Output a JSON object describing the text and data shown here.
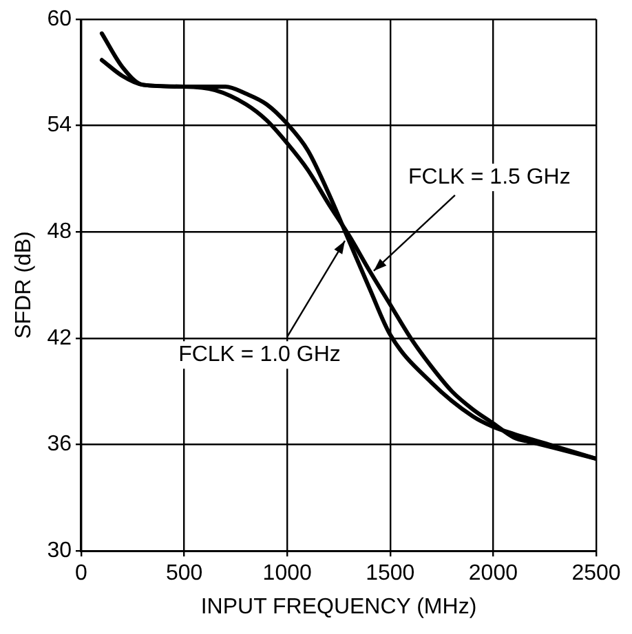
{
  "chart_data": {
    "type": "line",
    "xlabel": "INPUT FREQUENCY (MHz)",
    "ylabel": "SFDR (dB)",
    "xlim": [
      0,
      2500
    ],
    "xticks": [
      0,
      500,
      1000,
      1500,
      2000,
      2500
    ],
    "ylim": [
      30,
      60
    ],
    "yticks": [
      30,
      36,
      42,
      48,
      54,
      60
    ],
    "grid": true,
    "legend": false,
    "marker": "none",
    "line_style": "solid",
    "series": [
      {
        "color": "#000000",
        "x": [
          100,
          200,
          300,
          500,
          700,
          800,
          900,
          1000,
          1100,
          1200,
          1300,
          1400,
          1500,
          1700,
          1900,
          2000,
          2100,
          2300,
          2500
        ],
        "values": [
          57.7,
          56.8,
          56.3,
          56.2,
          56.2,
          55.8,
          55.2,
          54.1,
          52.6,
          50.2,
          47.5,
          44.8,
          42.2,
          39.5,
          37.6,
          37.0,
          36.6,
          35.9,
          35.2
        ]
      },
      {
        "color": "#000000",
        "x": [
          100,
          200,
          300,
          500,
          650,
          800,
          900,
          1000,
          1100,
          1200,
          1300,
          1400,
          1500,
          1600,
          1700,
          1800,
          1900,
          2000,
          2100,
          2200,
          2300,
          2500
        ],
        "values": [
          59.2,
          57.3,
          56.3,
          56.2,
          56.0,
          55.2,
          54.3,
          53.0,
          51.5,
          49.6,
          47.8,
          45.8,
          43.9,
          42.0,
          40.4,
          39.0,
          38.0,
          37.2,
          36.4,
          36.1,
          35.8,
          35.2
        ]
      }
    ],
    "annotations": [
      {
        "text": "FCLK = 1.5 GHz",
        "x": 1400,
        "y": 45.8
      },
      {
        "text": "FCLK = 1.0 GHz",
        "x": 1300,
        "y": 47.5
      }
    ]
  }
}
